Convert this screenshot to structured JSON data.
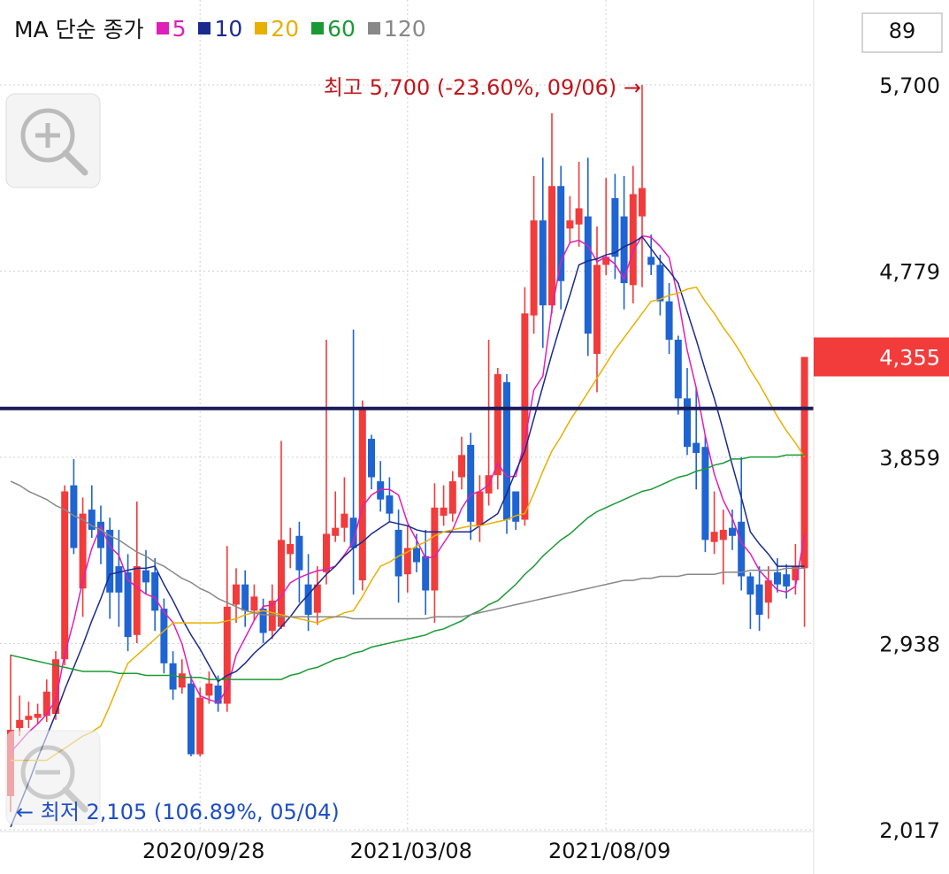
{
  "chart_data": {
    "type": "candlestick",
    "legend_title": "MA 단순 종가",
    "count_box": "89",
    "categories": [
      null,
      null,
      null,
      null,
      null,
      null,
      null,
      null,
      null,
      null,
      null,
      null,
      null,
      null,
      null,
      null,
      null,
      null,
      null,
      null,
      null,
      "2020/09/28",
      null,
      null,
      null,
      null,
      null,
      null,
      null,
      null,
      null,
      null,
      null,
      null,
      null,
      null,
      null,
      null,
      null,
      null,
      null,
      null,
      null,
      null,
      "2021/03/08",
      null,
      null,
      null,
      null,
      null,
      null,
      null,
      null,
      null,
      null,
      null,
      null,
      null,
      null,
      null,
      null,
      null,
      null,
      null,
      null,
      null,
      "2021/08/09",
      null,
      null,
      null,
      null,
      null,
      null,
      null,
      null,
      null,
      null,
      null,
      null,
      null,
      null,
      null,
      null,
      null,
      null,
      null,
      null,
      null,
      null
    ],
    "open": [
      2183,
      2520,
      2560,
      2570,
      2580,
      2590,
      2860,
      3720,
      3210,
      3600,
      3540,
      3500,
      3320,
      3290,
      2980,
      3300,
      3290,
      3110,
      2840,
      2720,
      2740,
      2390,
      2680,
      2730,
      2640,
      3130,
      3230,
      3100,
      3110,
      3000,
      3020,
      3380,
      3470,
      3230,
      3090,
      3290,
      3470,
      3510,
      3560,
      3250,
      3950,
      3740,
      3670,
      3500,
      3280,
      3410,
      3370,
      3200,
      3570,
      3580,
      3760,
      3920,
      3520,
      3680,
      3770,
      4230,
      3690,
      3550,
      4560,
      5030,
      4610,
      5200,
      4990,
      5010,
      5050,
      4370,
      4810,
      5140,
      5050,
      4710,
      5050,
      4850,
      4810,
      4630,
      4440,
      4150,
      3930,
      3910,
      3440,
      3450,
      3510,
      3540,
      3270,
      3230,
      3140,
      3290,
      3280,
      3250,
      3310
    ],
    "high": [
      2883,
      2680,
      2650,
      2640,
      2760,
      2900,
      3720,
      3850,
      3660,
      3720,
      3620,
      3560,
      3500,
      3380,
      3640,
      3400,
      3360,
      3160,
      2900,
      2860,
      2780,
      2720,
      2800,
      2780,
      3420,
      3310,
      3300,
      3230,
      3160,
      3230,
      3940,
      3510,
      3540,
      3380,
      3320,
      4440,
      3690,
      3760,
      4490,
      4140,
      3970,
      3840,
      3760,
      3600,
      3520,
      3480,
      3500,
      3730,
      3720,
      3790,
      3960,
      3980,
      3770,
      4440,
      4300,
      4270,
      3690,
      4700,
      5250,
      5340,
      5560,
      5300,
      5150,
      5320,
      5340,
      5000,
      5240,
      5260,
      5250,
      5300,
      5700,
      4960,
      4860,
      4720,
      4460,
      4300,
      4200,
      3970,
      3690,
      3600,
      3600,
      3860,
      3290,
      3320,
      3320,
      3360,
      3330,
      3430,
      4355
    ],
    "low": [
      2105,
      2480,
      2520,
      2540,
      2550,
      2560,
      2830,
      3380,
      3070,
      3460,
      3330,
      3060,
      3020,
      2900,
      2940,
      3180,
      3000,
      2790,
      2660,
      2690,
      2380,
      2380,
      2640,
      2600,
      2600,
      3040,
      3020,
      3050,
      2940,
      2960,
      3010,
      3310,
      3140,
      3000,
      3030,
      3230,
      3440,
      3440,
      3180,
      3200,
      3700,
      3590,
      3540,
      3140,
      3190,
      3290,
      3080,
      3040,
      3520,
      3540,
      3700,
      3450,
      3440,
      3620,
      3700,
      3480,
      3500,
      3520,
      4470,
      4400,
      4570,
      4590,
      4920,
      4900,
      4360,
      4180,
      4760,
      4740,
      4590,
      4620,
      4700,
      4760,
      4560,
      4370,
      4070,
      3870,
      3700,
      3390,
      3380,
      3230,
      3400,
      3200,
      3010,
      3000,
      3060,
      3190,
      3160,
      3180,
      3020
    ],
    "close": [
      2511,
      2560,
      2580,
      2590,
      2700,
      2860,
      3690,
      3410,
      3580,
      3500,
      3410,
      3190,
      3190,
      2970,
      3320,
      3240,
      3100,
      2840,
      2710,
      2790,
      2390,
      2670,
      2740,
      2640,
      3120,
      3230,
      3100,
      3170,
      2990,
      3150,
      3450,
      3430,
      3300,
      3080,
      3230,
      3480,
      3510,
      3580,
      3410,
      4100,
      3760,
      3650,
      3580,
      3270,
      3410,
      3340,
      3200,
      3610,
      3610,
      3740,
      3870,
      3540,
      3690,
      3770,
      4270,
      3550,
      3540,
      4570,
      5030,
      4610,
      5200,
      4730,
      5030,
      5090,
      4470,
      4810,
      4850,
      4850,
      4720,
      5160,
      5190,
      4810,
      4630,
      4440,
      4150,
      3910,
      3880,
      3450,
      3490,
      3500,
      3470,
      3270,
      3180,
      3080,
      3250,
      3230,
      3220,
      3320,
      4355
    ],
    "up_color": "#f23b3b",
    "down_color": "#1e64d2",
    "series": [
      {
        "name": "5",
        "color": "#de1fb8",
        "values": [
          2400,
          2450,
          2500,
          2540,
          2588,
          2658,
          2884,
          3050,
          3248,
          3408,
          3518,
          3418,
          3374,
          3252,
          3216,
          3182,
          3164,
          3094,
          3042,
          2936,
          2766,
          2680,
          2660,
          2646,
          2712,
          2880,
          2966,
          3052,
          3122,
          3128,
          3172,
          3238,
          3264,
          3282,
          3298,
          3304,
          3320,
          3376,
          3442,
          3616,
          3672,
          3700,
          3700,
          3672,
          3534,
          3450,
          3360,
          3366,
          3434,
          3500,
          3606,
          3674,
          3690,
          3722,
          3828,
          3764,
          3764,
          3940,
          4192,
          4260,
          4590,
          4828,
          4920,
          4932,
          4904,
          4826,
          4850,
          4814,
          4740,
          4878,
          4954,
          4946,
          4902,
          4846,
          4644,
          4388,
          4202,
          3966,
          3776,
          3646,
          3558,
          3436,
          3382,
          3300,
          3250,
          3202,
          3192,
          3220,
          3475
        ]
      },
      {
        "name": "10",
        "color": "#1b2a8f",
        "values": [
          2030,
          2140,
          2250,
          2370,
          2480,
          2590,
          2710,
          2820,
          2930,
          3050,
          3160,
          3280,
          3290,
          3300,
          3310,
          3310,
          3320,
          3230,
          3150,
          3060,
          2980,
          2910,
          2830,
          2750,
          2780,
          2800,
          2840,
          2890,
          2930,
          2970,
          3020,
          3070,
          3130,
          3180,
          3230,
          3280,
          3320,
          3370,
          3410,
          3440,
          3480,
          3510,
          3540,
          3530,
          3520,
          3500,
          3490,
          3490,
          3490,
          3490,
          3490,
          3490,
          3520,
          3550,
          3580,
          3680,
          3790,
          3890,
          4050,
          4210,
          4370,
          4520,
          4660,
          4810,
          4830,
          4840,
          4860,
          4870,
          4900,
          4920,
          4950,
          4890,
          4830,
          4780,
          4720,
          4580,
          4440,
          4290,
          4150,
          3990,
          3820,
          3660,
          3490,
          3430,
          3380,
          3320,
          3320,
          3320,
          3320
        ]
      },
      {
        "name": "20",
        "color": "#e8b000",
        "values": [
          2360,
          2360,
          2360,
          2360,
          2360,
          2390,
          2420,
          2450,
          2480,
          2500,
          2530,
          2630,
          2740,
          2840,
          2880,
          2920,
          2960,
          3000,
          3040,
          3040,
          3040,
          3040,
          3040,
          3040,
          3050,
          3060,
          3080,
          3090,
          3100,
          3090,
          3080,
          3070,
          3060,
          3050,
          3040,
          3060,
          3070,
          3090,
          3100,
          3170,
          3250,
          3320,
          3340,
          3370,
          3390,
          3420,
          3440,
          3470,
          3490,
          3500,
          3510,
          3520,
          3520,
          3530,
          3540,
          3550,
          3570,
          3580,
          3680,
          3790,
          3890,
          3960,
          4040,
          4110,
          4180,
          4250,
          4320,
          4390,
          4450,
          4510,
          4570,
          4630,
          4640,
          4660,
          4670,
          4690,
          4700,
          4630,
          4570,
          4500,
          4440,
          4370,
          4290,
          4220,
          4140,
          4060,
          3990,
          3930,
          3860
        ]
      },
      {
        "name": "60",
        "color": "#1a9a34",
        "values": [
          2880,
          2870,
          2860,
          2850,
          2840,
          2830,
          2820,
          2810,
          2800,
          2800,
          2800,
          2800,
          2790,
          2790,
          2790,
          2780,
          2780,
          2780,
          2780,
          2770,
          2770,
          2770,
          2760,
          2760,
          2760,
          2760,
          2760,
          2760,
          2760,
          2760,
          2760,
          2780,
          2790,
          2810,
          2820,
          2840,
          2860,
          2870,
          2890,
          2900,
          2920,
          2930,
          2940,
          2950,
          2960,
          2970,
          2980,
          3000,
          3010,
          3030,
          3050,
          3080,
          3100,
          3130,
          3150,
          3190,
          3230,
          3280,
          3320,
          3370,
          3410,
          3450,
          3480,
          3520,
          3560,
          3590,
          3610,
          3630,
          3650,
          3670,
          3690,
          3700,
          3720,
          3740,
          3760,
          3770,
          3790,
          3800,
          3820,
          3830,
          3850,
          3850,
          3860,
          3860,
          3860,
          3860,
          3870,
          3870,
          3870
        ]
      },
      {
        "name": "120",
        "color": "#888888",
        "values": [
          3740,
          3720,
          3690,
          3670,
          3650,
          3620,
          3600,
          3570,
          3550,
          3520,
          3500,
          3470,
          3450,
          3420,
          3390,
          3370,
          3340,
          3320,
          3290,
          3260,
          3240,
          3210,
          3190,
          3160,
          3140,
          3120,
          3100,
          3090,
          3080,
          3080,
          3070,
          3070,
          3070,
          3070,
          3070,
          3070,
          3070,
          3070,
          3060,
          3060,
          3060,
          3060,
          3060,
          3060,
          3060,
          3060,
          3060,
          3070,
          3070,
          3070,
          3070,
          3080,
          3090,
          3100,
          3110,
          3120,
          3130,
          3140,
          3150,
          3160,
          3170,
          3180,
          3190,
          3200,
          3210,
          3220,
          3230,
          3240,
          3250,
          3250,
          3260,
          3260,
          3270,
          3270,
          3270,
          3280,
          3280,
          3280,
          3280,
          3290,
          3290,
          3290,
          3300,
          3300,
          3300,
          3300,
          3310,
          3310,
          3310
        ]
      }
    ],
    "ylim": [
      2008,
      6120
    ],
    "yticks": [
      {
        "value": 2017,
        "label": "2,017"
      },
      {
        "value": 2938,
        "label": "2,938"
      },
      {
        "value": 3859,
        "label": "3,859"
      },
      {
        "value": 4779,
        "label": "4,779"
      },
      {
        "value": 5700,
        "label": "5,700"
      }
    ],
    "grid": true,
    "reference_line": {
      "value": 4100,
      "color": "#1c1c5a"
    },
    "current_price": {
      "value": 4355,
      "label": "4,355",
      "color": "#f23b3b"
    },
    "annotations": [
      {
        "text": "최고 5,700 (-23.60%, 09/06) →",
        "color": "#c0161b"
      },
      {
        "text": "← 최저 2,105 (106.89%, 05/04)",
        "color": "#1e4fc2"
      }
    ]
  }
}
